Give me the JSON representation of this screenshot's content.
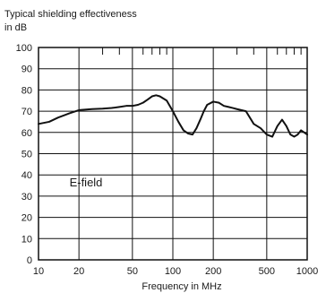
{
  "chart_data": {
    "type": "line",
    "title": "Typical shielding effectiveness",
    "subtitle": "in dB",
    "xlabel": "Frequency in MHz",
    "ylabel": "",
    "x_scale": "log",
    "xlim": [
      10,
      1000
    ],
    "ylim": [
      0,
      100
    ],
    "x_ticks": [
      10,
      20,
      50,
      100,
      200,
      500,
      1000
    ],
    "x_tick_labels": [
      "10",
      "20",
      "50",
      "100",
      "200",
      "500",
      "1000"
    ],
    "x_minor_ticks": [
      30,
      40,
      60,
      70,
      80,
      90,
      300,
      400,
      600,
      700,
      800,
      900
    ],
    "y_ticks": [
      0,
      10,
      20,
      30,
      40,
      50,
      60,
      70,
      80,
      90,
      100
    ],
    "y_tick_labels": [
      "0",
      "10",
      "20",
      "30",
      "40",
      "50",
      "60",
      "70",
      "80",
      "90",
      "100"
    ],
    "grid": true,
    "annotation": "E-field",
    "line_color": "#111111",
    "series": [
      {
        "name": "",
        "x": [
          10,
          12,
          14,
          17,
          20,
          25,
          30,
          35,
          40,
          45,
          50,
          55,
          60,
          65,
          70,
          75,
          80,
          90,
          100,
          110,
          120,
          130,
          140,
          150,
          160,
          170,
          180,
          200,
          220,
          240,
          260,
          280,
          300,
          350,
          400,
          450,
          500,
          550,
          600,
          650,
          700,
          750,
          800,
          850,
          900,
          950,
          1000
        ],
        "y": [
          64,
          65,
          67,
          69,
          70.5,
          71,
          71.2,
          71.5,
          72,
          72.5,
          72.5,
          73,
          74,
          75.5,
          77,
          77.5,
          77,
          75,
          70,
          65,
          61,
          59.5,
          59,
          62,
          66,
          70,
          73,
          74.5,
          74,
          72.5,
          72,
          71.5,
          71,
          70,
          64,
          62,
          59,
          58,
          63,
          66,
          63,
          59,
          58,
          59,
          61,
          60,
          59
        ]
      }
    ]
  }
}
